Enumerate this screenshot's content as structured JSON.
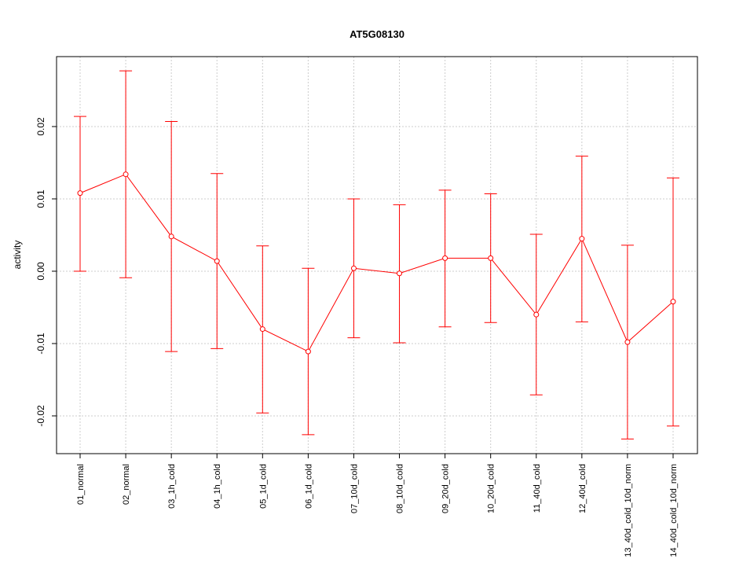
{
  "chart_data": {
    "type": "line",
    "title": "AT5G08130",
    "xlabel": "",
    "ylabel": "activity",
    "ylim": [
      -0.02522,
      0.02967
    ],
    "grid": true,
    "y_ticks": [
      -0.02,
      -0.01,
      0.0,
      0.01,
      0.02
    ],
    "y_tick_labels": [
      "-0.02",
      "-0.01",
      "0.00",
      "0.01",
      "0.02"
    ],
    "categories": [
      "01_normal",
      "02_normal",
      "03_1h_cold",
      "04_1h_cold",
      "05_1d_cold",
      "06_1d_cold",
      "07_10d_cold",
      "08_10d_cold",
      "09_20d_cold",
      "10_20d_cold",
      "11_40d_cold",
      "12_40d_cold",
      "13_40d_cold_10d_norm",
      "14_40d_cold_10d_norm"
    ],
    "series": [
      {
        "name": "AT5G08130",
        "color": "#ff0000",
        "values": [
          0.0108,
          0.0134,
          0.0048,
          0.0014,
          -0.008,
          -0.0111,
          0.0004,
          -0.0003,
          0.0018,
          0.0018,
          -0.006,
          0.0045,
          -0.0098,
          -0.0042
        ],
        "upper": [
          0.0214,
          0.0277,
          0.0207,
          0.0135,
          0.0035,
          0.0004,
          0.01,
          0.0092,
          0.0112,
          0.0107,
          0.0051,
          0.0159,
          0.0036,
          0.0129
        ],
        "lower": [
          0.0,
          -0.0009,
          -0.0111,
          -0.0107,
          -0.0196,
          -0.0226,
          -0.0092,
          -0.0099,
          -0.0077,
          -0.0071,
          -0.0171,
          -0.007,
          -0.0232,
          -0.0214
        ]
      }
    ]
  }
}
